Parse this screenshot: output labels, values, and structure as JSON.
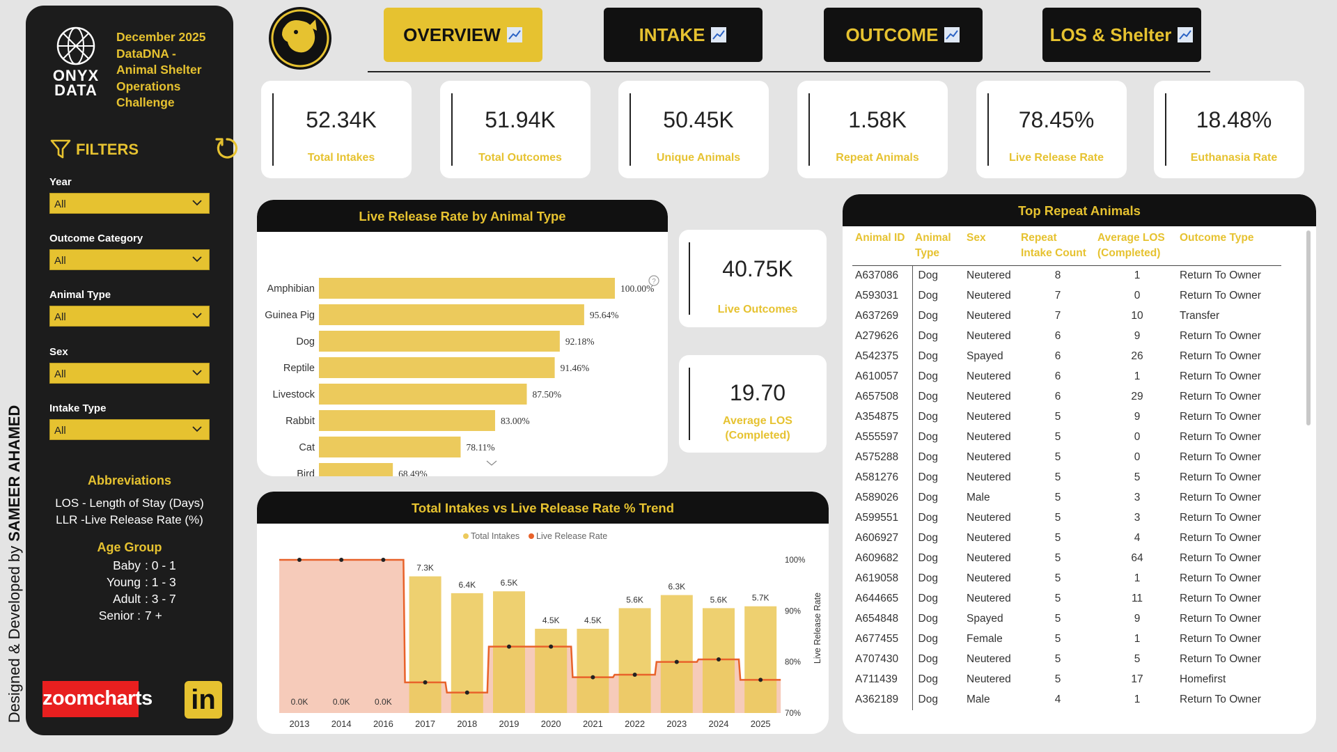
{
  "credit": {
    "prefix": "Designed & Developed by ",
    "name": "SAMEER AHAMED"
  },
  "sidebar": {
    "logo_line1": "ONYX",
    "logo_line2": "DATA",
    "challenge_lines": [
      "December 2025",
      "DataDNA -",
      "Animal Shelter",
      "Operations",
      "Challenge"
    ],
    "filters_label": "FILTERS",
    "filters": [
      {
        "label": "Year",
        "value": "All"
      },
      {
        "label": "Outcome Category",
        "value": "All"
      },
      {
        "label": "Animal Type",
        "value": "All"
      },
      {
        "label": "Sex",
        "value": "All"
      },
      {
        "label": "Intake Type",
        "value": "All"
      }
    ],
    "abbreviations_title": "Abbreviations",
    "abbreviations": [
      "LOS - Length of Stay (Days)",
      "LLR -Live Release Rate (%)"
    ],
    "age_group_title": "Age Group",
    "age_groups": [
      {
        "label": "Baby",
        "range": ": 0 - 1"
      },
      {
        "label": "Young",
        "range": ": 1 - 3"
      },
      {
        "label": "Adult",
        "range": ": 3 - 7"
      },
      {
        "label": "Senior :",
        "range": "7 +"
      }
    ],
    "zoomcharts_label": "zoomcharts",
    "linkedin_label": "in"
  },
  "nav": {
    "tabs": [
      {
        "label": "OVERVIEW",
        "active": true
      },
      {
        "label": "INTAKE",
        "active": false
      },
      {
        "label": "OUTCOME",
        "active": false
      },
      {
        "label": "LOS & Shelter",
        "active": false
      }
    ]
  },
  "kpis": [
    {
      "value": "52.34K",
      "label": "Total Intakes"
    },
    {
      "value": "51.94K",
      "label": "Total Outcomes"
    },
    {
      "value": "50.45K",
      "label": "Unique Animals"
    },
    {
      "value": "1.58K",
      "label": "Repeat Animals"
    },
    {
      "value": "78.45%",
      "label": "Live Release Rate"
    },
    {
      "value": "18.48%",
      "label": "Euthanasia Rate"
    }
  ],
  "side_kpis": [
    {
      "value": "40.75K",
      "label": "Live Outcomes"
    },
    {
      "value": "19.70",
      "label_line1": "Average LOS",
      "label_line2": "(Completed)"
    }
  ],
  "colors": {
    "accent": "#e6c230",
    "dark": "#111111",
    "line": "#e8622a",
    "bar": "#ecca5c"
  },
  "chart_data": [
    {
      "type": "bar",
      "title": "Live Release Rate by Animal Type",
      "orientation": "horizontal",
      "categories": [
        "Amphibian",
        "Guinea Pig",
        "Dog",
        "Reptile",
        "Livestock",
        "Rabbit",
        "Cat",
        "Bird"
      ],
      "values": [
        100.0,
        95.64,
        92.18,
        91.46,
        87.5,
        83.0,
        78.11,
        68.49
      ],
      "data_labels": [
        "100.00%",
        "95.64%",
        "92.18%",
        "91.46%",
        "87.50%",
        "83.00%",
        "78.11%",
        "68.49%"
      ]
    },
    {
      "type": "bar",
      "title": "Total Intakes vs Live Release Rate % Trend",
      "legend": [
        "Total Intakes",
        "Live Release Rate"
      ],
      "legend_position": "top",
      "categories": [
        "2013",
        "2014",
        "2016",
        "2017",
        "2018",
        "2019",
        "2020",
        "2021",
        "2022",
        "2023",
        "2024",
        "2025"
      ],
      "series": [
        {
          "name": "Total Intakes",
          "type": "bar",
          "values": [
            0,
            0,
            0,
            7300,
            6400,
            6500,
            4500,
            4500,
            5600,
            6300,
            5600,
            5700
          ],
          "data_labels": [
            "0.0K",
            "0.0K",
            "0.0K",
            "7.3K",
            "6.4K",
            "6.5K",
            "4.5K",
            "4.5K",
            "5.6K",
            "6.3K",
            "5.6K",
            "5.7K"
          ]
        },
        {
          "name": "Live Release Rate",
          "type": "line",
          "values": [
            100,
            100,
            100,
            76,
            74,
            83,
            83,
            77,
            77.5,
            80,
            80.5,
            76.5
          ]
        }
      ],
      "y2label": "Live Release Rate",
      "y2_ticks": [
        "100%",
        "90%",
        "80%",
        "70%"
      ],
      "y2lim": [
        70,
        100
      ]
    }
  ],
  "table": {
    "title": "Top Repeat Animals",
    "columns": [
      [
        "Animal ID"
      ],
      [
        "Animal",
        "Type"
      ],
      [
        "Sex"
      ],
      [
        "Repeat",
        "Intake Count"
      ],
      [
        "Average LOS",
        "(Completed)"
      ],
      [
        "Outcome Type"
      ]
    ],
    "rows": [
      [
        "A637086",
        "Dog",
        "Neutered",
        "8",
        "1",
        "Return To Owner"
      ],
      [
        "A593031",
        "Dog",
        "Neutered",
        "7",
        "0",
        "Return To Owner"
      ],
      [
        "A637269",
        "Dog",
        "Neutered",
        "7",
        "10",
        "Transfer"
      ],
      [
        "A279626",
        "Dog",
        "Neutered",
        "6",
        "9",
        "Return To Owner"
      ],
      [
        "A542375",
        "Dog",
        "Spayed",
        "6",
        "26",
        "Return To Owner"
      ],
      [
        "A610057",
        "Dog",
        "Neutered",
        "6",
        "1",
        "Return To Owner"
      ],
      [
        "A657508",
        "Dog",
        "Neutered",
        "6",
        "29",
        "Return To Owner"
      ],
      [
        "A354875",
        "Dog",
        "Neutered",
        "5",
        "9",
        "Return To Owner"
      ],
      [
        "A555597",
        "Dog",
        "Neutered",
        "5",
        "0",
        "Return To Owner"
      ],
      [
        "A575288",
        "Dog",
        "Neutered",
        "5",
        "0",
        "Return To Owner"
      ],
      [
        "A581276",
        "Dog",
        "Neutered",
        "5",
        "5",
        "Return To Owner"
      ],
      [
        "A589026",
        "Dog",
        "Male",
        "5",
        "3",
        "Return To Owner"
      ],
      [
        "A599551",
        "Dog",
        "Neutered",
        "5",
        "3",
        "Return To Owner"
      ],
      [
        "A606927",
        "Dog",
        "Neutered",
        "5",
        "4",
        "Return To Owner"
      ],
      [
        "A609682",
        "Dog",
        "Neutered",
        "5",
        "64",
        "Return To Owner"
      ],
      [
        "A619058",
        "Dog",
        "Neutered",
        "5",
        "1",
        "Return To Owner"
      ],
      [
        "A644665",
        "Dog",
        "Neutered",
        "5",
        "11",
        "Return To Owner"
      ],
      [
        "A654848",
        "Dog",
        "Spayed",
        "5",
        "9",
        "Return To Owner"
      ],
      [
        "A677455",
        "Dog",
        "Female",
        "5",
        "1",
        "Return To Owner"
      ],
      [
        "A707430",
        "Dog",
        "Neutered",
        "5",
        "5",
        "Return To Owner"
      ],
      [
        "A711439",
        "Dog",
        "Neutered",
        "5",
        "17",
        "Homefirst"
      ],
      [
        "A362189",
        "Dog",
        "Male",
        "4",
        "1",
        "Return To Owner"
      ]
    ]
  }
}
